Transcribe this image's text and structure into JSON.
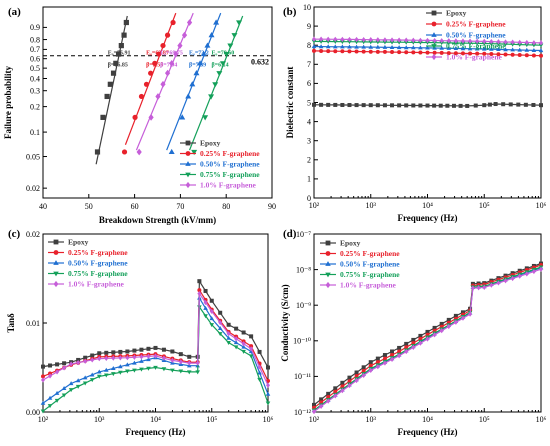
{
  "figure": {
    "series_colors": {
      "Epoxy": "#3f3f3f",
      "0.25% F-graphene": "#e8212b",
      "0.50% F-graphene": "#1f6fd1",
      "0.75% F-graphene": "#14a05a",
      "1.0%  F-graphene": "#c65ed9"
    },
    "legend_markers": {
      "Epoxy": "square",
      "0.25% F-graphene": "circle",
      "0.50% F-graphene": "triangle-up",
      "0.75% F-graphene": "triangle-down",
      "1.0%  F-graphene": "diamond"
    },
    "panels": [
      {
        "label": "(a)"
      },
      {
        "label": "(b)"
      },
      {
        "label": "(c)"
      },
      {
        "label": "(d)"
      }
    ]
  },
  "chart_data": [
    {
      "id": "a",
      "type": "scatter",
      "subtype": "weibull",
      "xlabel": "Breakdown Strength (kV/mm)",
      "ylabel": "Failure probability",
      "xlim": [
        40,
        90
      ],
      "xticks": [
        "40",
        "50",
        "60",
        "70",
        "80",
        "90"
      ],
      "yticks": [
        "0.9",
        "0.8",
        "0.7",
        "0.6",
        "0.5",
        "0.4",
        "0.3",
        "0.2",
        "0.1",
        "0.05",
        "0.02"
      ],
      "ylim": [
        0.015,
        0.985
      ],
      "ref_value_label": "0.632",
      "legend": [
        "Epoxy",
        "0.25% F-graphene",
        "0.50% F-graphene",
        "0.75% F-graphene",
        "1.0%  F-graphene"
      ],
      "legend_position": "bottom-right",
      "series": [
        {
          "name": "Epoxy",
          "E0": "E₀=55.91",
          "beta": "β=16.85",
          "x": [
            51.9,
            53.1,
            54.0,
            54.7,
            55.4,
            55.9,
            56.5,
            57.1,
            57.7,
            58.2
          ],
          "y": [
            0.057,
            0.15,
            0.26,
            0.35,
            0.45,
            0.55,
            0.65,
            0.74,
            0.84,
            0.93
          ],
          "fit": [
            [
              51.6,
              0.04
            ],
            [
              58.4,
              0.96
            ]
          ]
        },
        {
          "name": "0.25% F-graphene",
          "E0": "E₀=63.87",
          "beta": "β=9.56",
          "x": [
            57.8,
            60.1,
            61.5,
            62.6,
            63.5,
            64.4,
            65.3,
            66.2,
            67.2,
            68.4
          ],
          "y": [
            0.057,
            0.15,
            0.26,
            0.35,
            0.45,
            0.55,
            0.65,
            0.74,
            0.84,
            0.93
          ],
          "fit": [
            [
              58.0,
              0.07
            ],
            [
              69.0,
              0.97
            ]
          ]
        },
        {
          "name": "0.50% F-graphene",
          "E0": "E₀=73.2",
          "beta": "β=7.39",
          "x": [
            68.1,
            70.4,
            71.7,
            72.6,
            73.5,
            74.3,
            75.1,
            75.9,
            76.8,
            77.8
          ],
          "y": [
            0.057,
            0.15,
            0.26,
            0.35,
            0.45,
            0.55,
            0.65,
            0.74,
            0.84,
            0.93
          ],
          "fit": [
            [
              67.0,
              0.06
            ],
            [
              78.8,
              0.97
            ]
          ]
        },
        {
          "name": "0.75% F-graphene",
          "E0": "E₀=78.60",
          "beta": "β=6.14",
          "x": [
            73.0,
            75.4,
            76.7,
            77.6,
            78.5,
            79.3,
            80.1,
            80.9,
            81.8,
            82.8
          ],
          "y": [
            0.057,
            0.15,
            0.26,
            0.35,
            0.45,
            0.55,
            0.65,
            0.74,
            0.84,
            0.93
          ],
          "fit": [
            [
              72.0,
              0.06
            ],
            [
              83.6,
              0.96
            ]
          ]
        },
        {
          "name": "1.0%  F-graphene",
          "E0": "E₀=69.75",
          "beta": "β=7.04",
          "x": [
            61.0,
            63.6,
            65.1,
            66.2,
            67.2,
            68.1,
            69.0,
            69.9,
            70.9,
            72.0
          ],
          "y": [
            0.057,
            0.15,
            0.26,
            0.35,
            0.45,
            0.55,
            0.65,
            0.74,
            0.84,
            0.93
          ],
          "fit": [
            [
              60.4,
              0.06
            ],
            [
              72.8,
              0.97
            ]
          ]
        }
      ]
    },
    {
      "id": "b",
      "type": "line",
      "xlabel": "Frequency (Hz)",
      "ylabel": "Dielectric constant",
      "xscale": "log",
      "xlim": [
        100,
        1000000
      ],
      "xticks": [
        "10²",
        "10³",
        "10⁴",
        "10⁵",
        "10⁶"
      ],
      "ylim": [
        0,
        10
      ],
      "yticks": [
        "0",
        "1",
        "2",
        "3",
        "4",
        "5",
        "6",
        "7",
        "8",
        "9",
        "10"
      ],
      "legend": [
        "Epoxy",
        "0.25% F-graphene",
        "0.50% F-graphene",
        "0.75% F-graphene",
        "1.0%  F-graphene"
      ],
      "legend_position": "top-right",
      "series": [
        {
          "name": "Epoxy",
          "points": [
            [
              2,
              4.88
            ],
            [
              3,
              4.86
            ],
            [
              4,
              4.84
            ],
            [
              4.7,
              4.82
            ],
            [
              5,
              4.86
            ],
            [
              5.2,
              4.92
            ],
            [
              6,
              4.86
            ]
          ]
        },
        {
          "name": "0.25% F-graphene",
          "points": [
            [
              2,
              7.7
            ],
            [
              3,
              7.66
            ],
            [
              4,
              7.61
            ],
            [
              5,
              7.55
            ],
            [
              6,
              7.45
            ]
          ]
        },
        {
          "name": "0.50% F-graphene",
          "points": [
            [
              2,
              7.93
            ],
            [
              3,
              7.9
            ],
            [
              4,
              7.86
            ],
            [
              5,
              7.8
            ],
            [
              6,
              7.72
            ]
          ]
        },
        {
          "name": "0.75% F-graphene",
          "points": [
            [
              2,
              8.2
            ],
            [
              3,
              8.17
            ],
            [
              4,
              8.14
            ],
            [
              5,
              8.09
            ],
            [
              6,
              8.0
            ]
          ]
        },
        {
          "name": "1.0%  F-graphene",
          "points": [
            [
              2,
              8.32
            ],
            [
              3,
              8.29
            ],
            [
              4,
              8.25
            ],
            [
              5,
              8.2
            ],
            [
              6,
              8.12
            ]
          ]
        }
      ]
    },
    {
      "id": "c",
      "type": "line",
      "xlabel": "Frequency (Hz)",
      "ylabel": "Tanδ",
      "xscale": "log",
      "xlim": [
        100,
        1000000
      ],
      "xticks": [
        "10²",
        "10³",
        "10⁴",
        "10⁵",
        "10⁶"
      ],
      "ylim": [
        0,
        0.02
      ],
      "yticks": [
        "0.00",
        "0.01",
        "0.02"
      ],
      "legend": [
        "Epoxy",
        "0.25% F-graphene",
        "0.50% F-graphene",
        "0.75% F-graphene",
        "1.0%  F-graphene"
      ],
      "legend_position": "top-left",
      "series": [
        {
          "name": "Epoxy",
          "points": [
            [
              2,
              0.0051
            ],
            [
              2.5,
              0.0056
            ],
            [
              3,
              0.0066
            ],
            [
              3.5,
              0.0068
            ],
            [
              4,
              0.0072
            ],
            [
              4.3,
              0.0068
            ],
            [
              4.6,
              0.0062
            ],
            [
              4.75,
              0.0062
            ],
            [
              4.78,
              0.0147
            ],
            [
              5,
              0.0125
            ],
            [
              5.3,
              0.0098
            ],
            [
              5.7,
              0.0085
            ],
            [
              6,
              0.005
            ]
          ]
        },
        {
          "name": "0.25% F-graphene",
          "points": [
            [
              2,
              0.004
            ],
            [
              2.5,
              0.0053
            ],
            [
              3,
              0.0062
            ],
            [
              3.5,
              0.0063
            ],
            [
              4,
              0.0065
            ],
            [
              4.3,
              0.006
            ],
            [
              4.6,
              0.0056
            ],
            [
              4.75,
              0.0056
            ],
            [
              4.78,
              0.0137
            ],
            [
              5,
              0.0115
            ],
            [
              5.3,
              0.009
            ],
            [
              5.7,
              0.0074
            ],
            [
              6,
              0.0035
            ]
          ]
        },
        {
          "name": "0.50% F-graphene",
          "points": [
            [
              2,
              0.001
            ],
            [
              2.5,
              0.0032
            ],
            [
              3,
              0.0045
            ],
            [
              3.5,
              0.0053
            ],
            [
              4,
              0.0061
            ],
            [
              4.3,
              0.0055
            ],
            [
              4.6,
              0.0052
            ],
            [
              4.75,
              0.0052
            ],
            [
              4.78,
              0.0128
            ],
            [
              5,
              0.0105
            ],
            [
              5.3,
              0.0083
            ],
            [
              5.7,
              0.0068
            ],
            [
              6,
              0.002
            ]
          ]
        },
        {
          "name": "0.75% F-graphene",
          "points": [
            [
              2,
              0.0001
            ],
            [
              2.5,
              0.0025
            ],
            [
              3,
              0.004
            ],
            [
              3.5,
              0.0046
            ],
            [
              4,
              0.005
            ],
            [
              4.3,
              0.0047
            ],
            [
              4.6,
              0.0045
            ],
            [
              4.75,
              0.0045
            ],
            [
              4.78,
              0.0118
            ],
            [
              5,
              0.0098
            ],
            [
              5.3,
              0.0078
            ],
            [
              5.7,
              0.0063
            ],
            [
              6,
              0.001
            ]
          ]
        },
        {
          "name": "1.0%  F-graphene",
          "points": [
            [
              2,
              0.0036
            ],
            [
              2.5,
              0.0054
            ],
            [
              3,
              0.006
            ],
            [
              3.5,
              0.0061
            ],
            [
              4,
              0.0063
            ],
            [
              4.3,
              0.0058
            ],
            [
              4.6,
              0.0055
            ],
            [
              4.75,
              0.0055
            ],
            [
              4.78,
              0.0133
            ],
            [
              5,
              0.0113
            ],
            [
              5.3,
              0.0088
            ],
            [
              5.7,
              0.0071
            ],
            [
              6,
              0.003
            ]
          ]
        }
      ]
    },
    {
      "id": "d",
      "type": "line",
      "xlabel": "Frequency (Hz)",
      "ylabel": "Conductivity (S/cm)",
      "xscale": "log",
      "yscale": "log",
      "xlim": [
        100,
        1000000
      ],
      "xticks": [
        "10²",
        "10³",
        "10⁴",
        "10⁵",
        "10⁶"
      ],
      "ylim": [
        1e-12,
        1e-07
      ],
      "yticks": [
        "10⁻¹²",
        "10⁻¹¹",
        "10⁻¹⁰",
        "10⁻⁹",
        "10⁻⁸",
        "10⁻⁷"
      ],
      "legend": [
        "Epoxy",
        "0.25% F-graphene",
        "0.50% F-graphene",
        "0.75% F-graphene",
        "1.0%  F-graphene"
      ],
      "legend_position": "top-left",
      "series": [
        {
          "name": "Epoxy",
          "points": [
            [
              2,
              -11.8
            ],
            [
              2.5,
              -11.18
            ],
            [
              3,
              -10.6
            ],
            [
              3.5,
              -10.2
            ],
            [
              4,
              -9.75
            ],
            [
              4.5,
              -9.3
            ],
            [
              4.75,
              -9.1
            ],
            [
              4.8,
              -8.4
            ],
            [
              5,
              -8.38
            ],
            [
              5.5,
              -8.1
            ],
            [
              6,
              -7.83
            ]
          ]
        },
        {
          "name": "0.25% F-graphene",
          "points": [
            [
              2,
              -11.88
            ],
            [
              2.5,
              -11.28
            ],
            [
              3,
              -10.7
            ],
            [
              3.5,
              -10.3
            ],
            [
              4,
              -9.83
            ],
            [
              4.5,
              -9.38
            ],
            [
              4.75,
              -9.15
            ],
            [
              4.8,
              -8.45
            ],
            [
              5,
              -8.42
            ],
            [
              5.5,
              -8.15
            ],
            [
              6,
              -7.87
            ]
          ]
        },
        {
          "name": "0.50% F-graphene",
          "points": [
            [
              2,
              -11.96
            ],
            [
              2.5,
              -11.38
            ],
            [
              3,
              -10.8
            ],
            [
              3.5,
              -10.4
            ],
            [
              4,
              -9.92
            ],
            [
              4.5,
              -9.45
            ],
            [
              4.75,
              -9.22
            ],
            [
              4.8,
              -8.5
            ],
            [
              5,
              -8.48
            ],
            [
              5.5,
              -8.22
            ],
            [
              6,
              -7.95
            ]
          ]
        },
        {
          "name": "0.75% F-graphene",
          "points": [
            [
              2,
              -11.95
            ],
            [
              2.5,
              -11.36
            ],
            [
              3,
              -10.78
            ],
            [
              3.5,
              -10.38
            ],
            [
              4,
              -9.9
            ],
            [
              4.5,
              -9.44
            ],
            [
              4.75,
              -9.2
            ],
            [
              4.8,
              -8.49
            ],
            [
              5,
              -8.47
            ],
            [
              5.5,
              -8.2
            ],
            [
              6,
              -7.93
            ]
          ]
        },
        {
          "name": "1.0%  F-graphene",
          "points": [
            [
              2,
              -11.99
            ],
            [
              2.5,
              -11.4
            ],
            [
              3,
              -10.83
            ],
            [
              3.5,
              -10.42
            ],
            [
              4,
              -9.95
            ],
            [
              4.5,
              -9.48
            ],
            [
              4.75,
              -9.25
            ],
            [
              4.8,
              -8.52
            ],
            [
              5,
              -8.5
            ],
            [
              5.5,
              -8.25
            ],
            [
              6,
              -7.99
            ]
          ]
        }
      ]
    }
  ]
}
